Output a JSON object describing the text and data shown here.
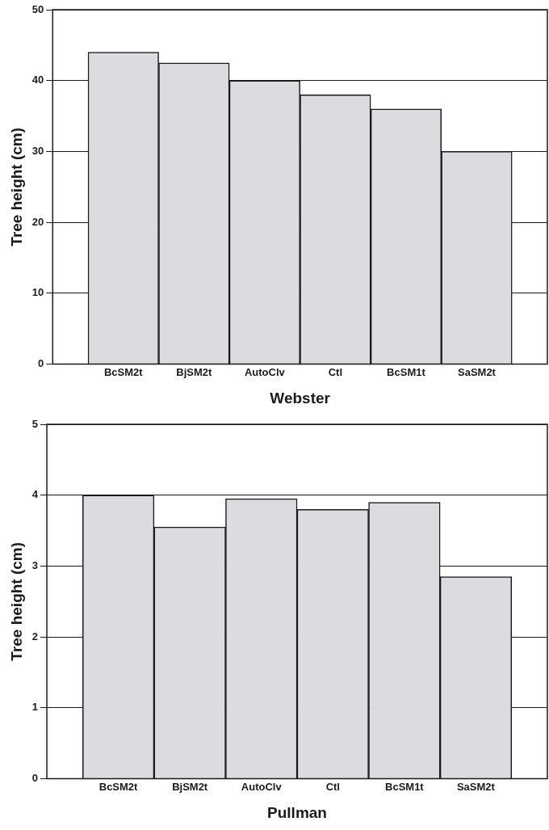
{
  "chart_data": [
    {
      "type": "bar",
      "xlabel": "Webster",
      "ylabel": "Tree height (cm)",
      "categories": [
        "BcSM2t",
        "BjSM2t",
        "AutoClv",
        "Ctl",
        "BcSM1t",
        "SaSM2t"
      ],
      "values": [
        44,
        42.5,
        40,
        38,
        36,
        30
      ],
      "color": "#dbdcdf",
      "ylim": [
        0,
        50
      ],
      "yticks": [
        0,
        10,
        20,
        30,
        40,
        50
      ],
      "grid": "y",
      "legend": false
    },
    {
      "type": "bar",
      "xlabel": "Pullman",
      "ylabel": "Tree height (cm)",
      "categories": [
        "BcSM2t",
        "BjSM2t",
        "AutoClv",
        "Ctl",
        "BcSM1t",
        "SaSM2t"
      ],
      "values": [
        4,
        3.55,
        3.95,
        3.8,
        3.9,
        2.85
      ],
      "color": "#dbdcdf",
      "ylim": [
        0,
        5
      ],
      "yticks": [
        0,
        1,
        2,
        3,
        4,
        5
      ],
      "grid": "y",
      "legend": false
    }
  ]
}
